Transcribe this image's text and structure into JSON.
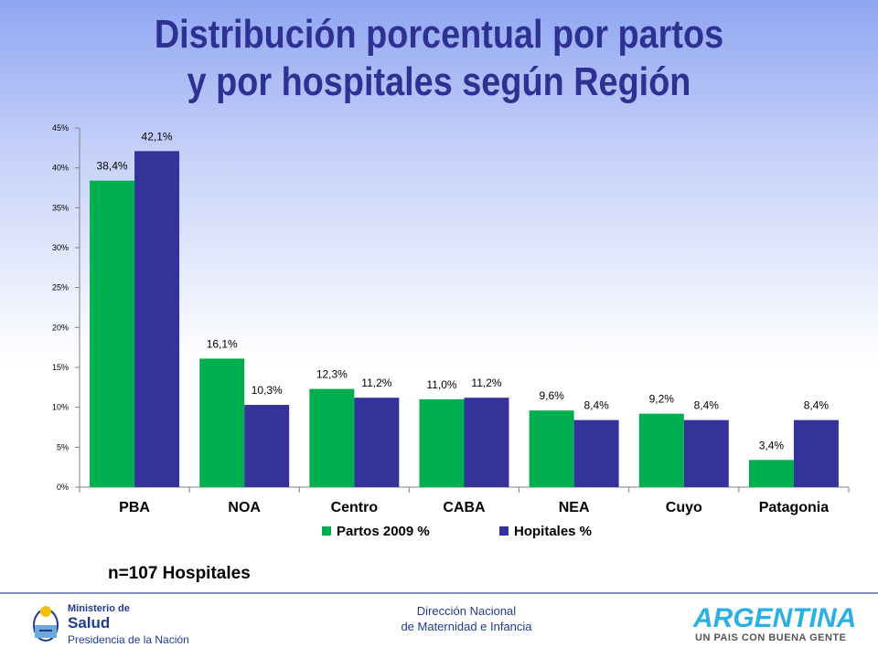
{
  "title": {
    "line1": "Distribución porcentual  por partos",
    "line2": "y por hospitales según Región"
  },
  "chart_data": {
    "type": "bar",
    "categories": [
      "PBA",
      "NOA",
      "Centro",
      "CABA",
      "NEA",
      "Cuyo",
      "Patagonia"
    ],
    "series": [
      {
        "name": "Partos 2009 %",
        "color": "#00b050",
        "values": [
          38.4,
          16.1,
          12.3,
          11.0,
          9.6,
          9.2,
          3.4
        ],
        "labels": [
          "38,4%",
          "16,1%",
          "12,3%",
          "11,0%",
          "9,6%",
          "9,2%",
          "3,4%"
        ]
      },
      {
        "name": "Hopitales %",
        "color": "#333399",
        "values": [
          42.1,
          10.3,
          11.2,
          11.2,
          8.4,
          8.4,
          8.4
        ],
        "labels": [
          "42,1%",
          "10,3%",
          "11,2%",
          "11,2%",
          "8,4%",
          "8,4%",
          "8,4%"
        ]
      }
    ],
    "yticks": [
      0,
      5,
      10,
      15,
      20,
      25,
      30,
      35,
      40,
      45
    ],
    "ytick_labels": [
      "0%",
      "5%",
      "10%",
      "15%",
      "20%",
      "25%",
      "30%",
      "35%",
      "40%",
      "45%"
    ],
    "ylim": [
      0,
      45
    ],
    "legend_position": "bottom",
    "grid": false
  },
  "n_label": "n=107 Hospitales",
  "footer": {
    "line1": "Dirección Nacional",
    "line2": "de Maternidad e Infancia",
    "ministry_line1": "Ministerio de",
    "ministry_line2": "Salud",
    "ministry_line3": "Presidencia de la Nación",
    "brand": "ARGENTINA",
    "brand_tagline": "UN PAIS CON BUENA GENTE"
  }
}
